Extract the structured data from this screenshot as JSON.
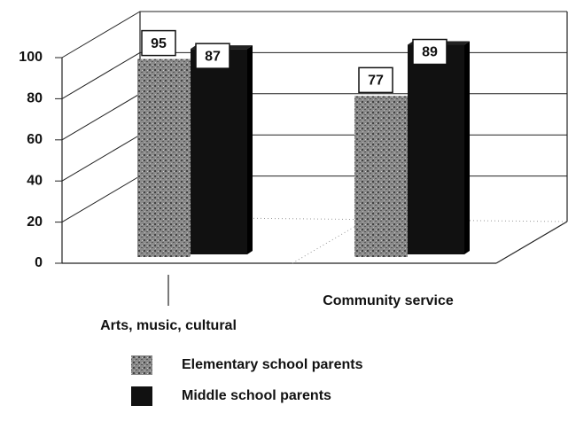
{
  "chart_data": {
    "type": "bar",
    "categories": [
      "Arts, music, cultural",
      "Community service"
    ],
    "series": [
      {
        "name": "Elementary school parents",
        "color": "#8a8a8a",
        "values": [
          95,
          77
        ]
      },
      {
        "name": "Middle school parents",
        "color": "#111111",
        "values": [
          87,
          89
        ]
      }
    ],
    "ylim": [
      0,
      100
    ],
    "yticks": [
      0,
      20,
      40,
      60,
      80,
      100
    ],
    "grid": true,
    "legend": "bottom"
  }
}
